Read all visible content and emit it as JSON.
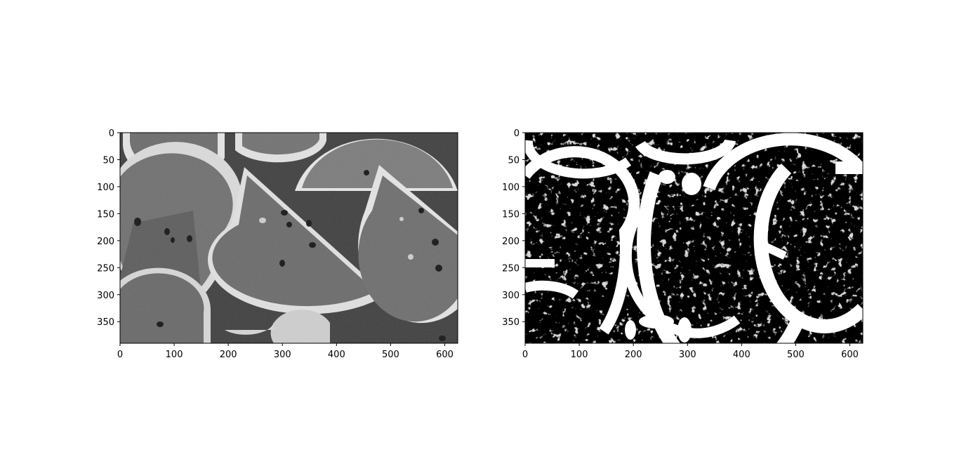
{
  "figure": {
    "background": "#ffffff",
    "layout": "1 row x 2 columns"
  },
  "chart_data": [
    {
      "type": "heatmap",
      "title": "",
      "xlabel": "",
      "ylabel": "",
      "image_description": "grayscale photograph of watermelon slices",
      "colormap": "gray",
      "xlim": [
        0,
        624
      ],
      "ylim": [
        390,
        0
      ],
      "xticks": [
        0,
        100,
        200,
        300,
        400,
        500,
        600
      ],
      "xtick_labels": [
        "0",
        "100",
        "200",
        "300",
        "400",
        "500",
        "600"
      ],
      "yticks": [
        0,
        50,
        100,
        150,
        200,
        250,
        300,
        350
      ],
      "ytick_labels": [
        "0",
        "50",
        "100",
        "150",
        "200",
        "250",
        "300",
        "350"
      ]
    },
    {
      "type": "heatmap",
      "title": "",
      "xlabel": "",
      "ylabel": "",
      "image_description": "binary thresholded version of the watermelon image",
      "colormap": "binary black/white",
      "xlim": [
        0,
        624
      ],
      "ylim": [
        390,
        0
      ],
      "xticks": [
        0,
        100,
        200,
        300,
        400,
        500,
        600
      ],
      "xtick_labels": [
        "0",
        "100",
        "200",
        "300",
        "400",
        "500",
        "600"
      ],
      "yticks": [
        0,
        50,
        100,
        150,
        200,
        250,
        300,
        350
      ],
      "ytick_labels": [
        "0",
        "50",
        "100",
        "150",
        "200",
        "250",
        "300",
        "350"
      ]
    }
  ]
}
